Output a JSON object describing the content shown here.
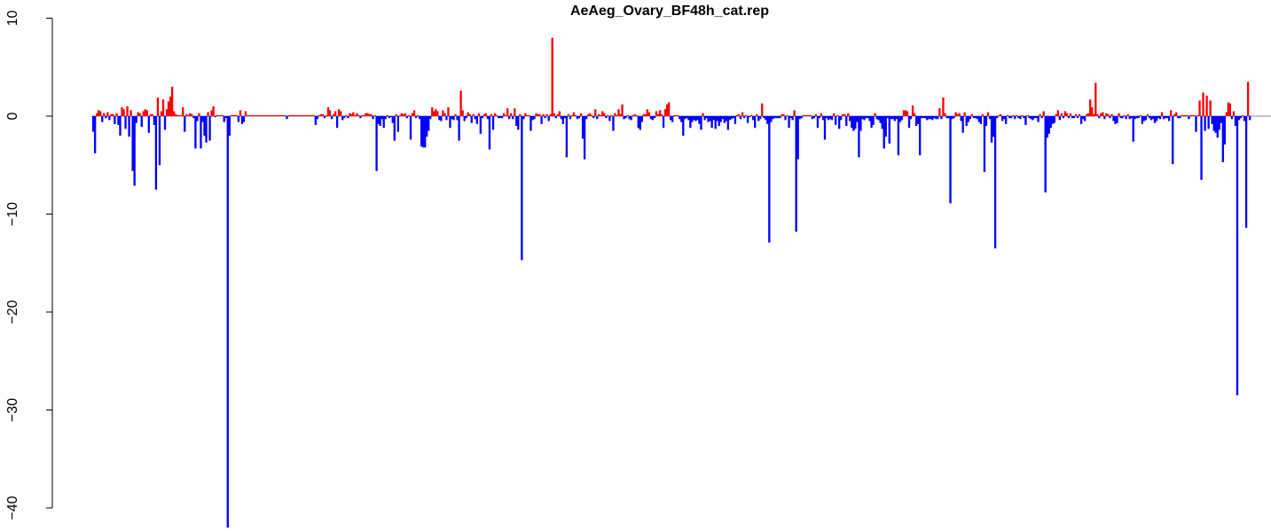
{
  "chart_data": {
    "type": "bar",
    "title": "AeAeg_Ovary_BF48h_cat.rep",
    "xlabel": "",
    "ylabel": "",
    "ylim": [
      -42,
      10
    ],
    "y_ticks": [
      10,
      0,
      -10,
      -20,
      -30,
      -40
    ],
    "y_tick_labels": [
      "10",
      "0",
      "−10",
      "−20",
      "−30",
      "−40"
    ],
    "baseline": 0,
    "colors": {
      "positive": "#ff0000",
      "negative": "#0000ff",
      "baseline": "#888888"
    },
    "series": [
      {
        "values": [
          -1.6,
          -3.8,
          0.3,
          0.6,
          0.5,
          -0.6,
          0.3,
          -0.2,
          0.4,
          -0.4,
          0.2,
          0.2,
          -0.8,
          0.3,
          -0.9,
          -2.0,
          0.9,
          0.7,
          -1.3,
          1.0,
          -2.1,
          0.6,
          -5.6,
          -7.1,
          -0.7,
          0.4,
          0.3,
          -1.1,
          0.5,
          0.7,
          0.6,
          -1.7,
          0.2,
          0.2,
          -0.9,
          -7.5,
          1.9,
          -5.0,
          0.5,
          1.7,
          -1.4,
          0.7,
          1.5,
          2.0,
          3.0,
          0.5,
          0.2,
          0.1,
          0.1,
          0.1,
          0.9,
          -1.6,
          0.2,
          0.1,
          0.3,
          0.2,
          -0.2,
          -3.3,
          -0.5,
          0.3,
          -3.3,
          -0.6,
          -2.0,
          -2.7,
          0.4,
          -2.5,
          0.6,
          1.0,
          -0.1,
          0.1,
          0.1,
          0.1,
          0.1,
          -0.6,
          -0.2,
          -42.0,
          -2.0,
          0.1,
          0.1,
          0.1,
          0.1,
          -0.6,
          0.6,
          -0.8,
          -0.6,
          0.5,
          0.1,
          0.1,
          0.1,
          0.1,
          0.1,
          0.1,
          0.1,
          0.1,
          0.1,
          0.1,
          0.1,
          0.1,
          0.1,
          0.1,
          0.1,
          0.1,
          0.1,
          0.1,
          0.1,
          0.1,
          0.1,
          0.1,
          -0.3,
          0.1,
          0.1,
          0.1,
          0.1,
          0.1,
          0.1,
          0.1,
          0.1,
          0.1,
          0.1,
          0.1,
          0.1,
          0.1,
          0.1,
          0.1,
          -0.9,
          -0.3,
          0.1,
          0.2,
          0.2,
          -0.2,
          0.1,
          0.9,
          0.6,
          -0.3,
          0.2,
          0.5,
          -1.2,
          0.7,
          0.5,
          -0.4,
          -0.2,
          0.1,
          -0.2,
          0.3,
          0.2,
          0.4,
          0.1,
          0.3,
          0.1,
          -0.2,
          0.1,
          0.1,
          0.3,
          0.3,
          0.2,
          0.2,
          -0.3,
          0.1,
          -5.6,
          -0.8,
          -1.0,
          -0.3,
          -1.2,
          -0.3,
          0.1,
          -0.2,
          -0.1,
          -0.7,
          -2.5,
          0.2,
          -1.6,
          0.1,
          0.3,
          0.2,
          0.3,
          -0.2,
          0.1,
          -2.4,
          0.3,
          0.6,
          -0.2,
          0.1,
          -0.3,
          -3.1,
          -3.2,
          -3.2,
          -2.1,
          -1.5,
          -0.3,
          0.9,
          0.5,
          0.7,
          0.5,
          -0.4,
          -0.5,
          0.6,
          0.3,
          -0.4,
          0.9,
          -1.2,
          -0.3,
          -0.4,
          0.2,
          -0.4,
          -2.5,
          2.6,
          0.6,
          -0.5,
          -0.2,
          0.4,
          0.2,
          -0.7,
          0.2,
          -0.3,
          -0.8,
          0.3,
          -1.8,
          -0.2,
          0.2,
          0.3,
          -0.3,
          -3.4,
          0.2,
          -1.4,
          0.3,
          0.1,
          -0.2,
          -0.2,
          -0.2,
          0.3,
          0.1,
          0.8,
          -0.3,
          0.3,
          -0.3,
          0.8,
          -1.0,
          -1.4,
          0.2,
          -14.7,
          -0.3,
          0.3,
          0.1,
          0.1,
          -1.5,
          -0.4,
          -0.3,
          0.3,
          0.2,
          0.2,
          -0.8,
          0.2,
          -0.2,
          0.2,
          -0.5,
          0.2,
          8.0,
          0.3,
          -0.2,
          0.2,
          0.5,
          -0.3,
          -0.8,
          -0.2,
          -4.2,
          0.2,
          -0.3,
          0.1,
          0.4,
          0.1,
          -0.3,
          -0.2,
          0.3,
          -2.3,
          -4.4,
          -0.3,
          0.2,
          0.3,
          0.1,
          -0.2,
          0.7,
          -0.3,
          0.2,
          0.1,
          0.5,
          0.3,
          -0.2,
          0.1,
          -0.5,
          0.1,
          -1.5,
          0.3,
          0.1,
          0.7,
          0.2,
          1.2,
          -0.3,
          -0.2,
          0.1,
          -0.3,
          -0.4,
          0.1,
          0.2,
          0.1,
          -1.2,
          -1.4,
          -0.6,
          0.2,
          0.2,
          0.7,
          0.4,
          -0.3,
          -0.4,
          -0.2,
          0.5,
          0.2,
          0.6,
          0.2,
          -1.2,
          0.7,
          1.2,
          1.4,
          -0.4,
          -0.6,
          0.1,
          0.1,
          0.1,
          -0.3,
          -0.6,
          -2.0,
          -0.3,
          -0.2,
          -0.4,
          -1.2,
          -0.6,
          -0.4,
          -0.5,
          -0.4,
          -0.8,
          -1.4,
          0.3,
          -0.4,
          -0.2,
          -0.6,
          -0.5,
          -1.2,
          -0.4,
          -1.3,
          -0.5,
          -1.0,
          -0.6,
          -0.3,
          -0.7,
          -0.5,
          -1.4,
          -0.4,
          -0.3,
          -0.2,
          -0.8,
          0.1,
          0.2,
          -0.3,
          0.4,
          -0.2,
          0.1,
          -0.7,
          -0.1,
          0.1,
          -0.4,
          -1.2,
          0.2,
          -0.5,
          -0.3,
          1.3,
          -0.2,
          -0.4,
          -0.8,
          -12.9,
          -0.6,
          -0.3,
          -0.2,
          -0.2,
          -0.2,
          -0.2,
          0.2,
          0.2,
          -0.4,
          0.1,
          -1.2,
          -0.2,
          -0.4,
          0.6,
          -11.8,
          -4.4,
          -0.3,
          -0.2,
          0.1,
          0.1,
          0.1,
          0.1,
          0.1,
          -0.3,
          -0.2,
          0.2,
          -1.2,
          -0.2,
          0.3,
          -0.4,
          -2.4,
          -0.2,
          -0.4,
          -0.3,
          -0.4,
          0.3,
          -0.9,
          0.1,
          -1.3,
          -0.4,
          0.2,
          0.2,
          -1.0,
          0.3,
          -0.5,
          -1.2,
          -1.5,
          -1.3,
          -0.6,
          -4.2,
          -1.5,
          -0.3,
          -0.4,
          -0.2,
          -0.2,
          -0.5,
          -1.2,
          -0.9,
          0.3,
          -0.3,
          -0.4,
          -0.7,
          -1.3,
          -3.3,
          -2.1,
          -0.2,
          -2.8,
          -0.3,
          -0.3,
          -0.5,
          -0.3,
          -4.0,
          -0.6,
          -0.4,
          0.6,
          0.6,
          0.5,
          -1.2,
          -0.3,
          1.1,
          0.3,
          -1.0,
          -0.8,
          -4.0,
          -0.2,
          -0.2,
          -0.2,
          -0.4,
          -0.3,
          -0.3,
          -0.4,
          -0.2,
          -0.3,
          -0.3,
          0.8,
          -0.3,
          1.9,
          0.3,
          -0.2,
          -0.2,
          -8.9,
          -0.3,
          -0.2,
          0.4,
          0.2,
          0.3,
          -0.5,
          -1.7,
          0.4,
          -1.0,
          -0.6,
          -0.3,
          0.2,
          -0.2,
          -0.2,
          -0.3,
          -0.6,
          -0.8,
          0.2,
          -5.7,
          -1.0,
          0.4,
          -0.3,
          -2.7,
          -2.1,
          -13.5,
          -0.2,
          0.1,
          0.2,
          -0.5,
          -0.3,
          -0.8,
          0.1,
          -0.2,
          -0.2,
          0.1,
          -0.3,
          0.1,
          -0.2,
          -0.3,
          0.1,
          -0.2,
          -0.9,
          0.1,
          -0.2,
          -0.3,
          -0.4,
          -0.2,
          -0.2,
          -0.6,
          0.2,
          -0.2,
          0.5,
          -7.8,
          -2.2,
          -1.8,
          -1.2,
          -0.8,
          -0.7,
          0.2,
          0.6,
          -0.4,
          0.3,
          -0.2,
          0.5,
          0.3,
          -0.2,
          0.3,
          -0.2,
          -0.2,
          0.2,
          -0.2,
          0.2,
          -0.8,
          -0.3,
          -0.5,
          0.2,
          0.3,
          1.7,
          0.9,
          0.2,
          3.4,
          0.2,
          -0.2,
          0.3,
          0.4,
          -0.3,
          0.3,
          0.2,
          -0.2,
          0.2,
          -0.5,
          -0.8,
          -0.7,
          0.3,
          -0.2,
          -0.2,
          0.1,
          -0.3,
          0.2,
          -0.3,
          -0.2,
          -2.6,
          -0.3,
          -0.2,
          -0.2,
          0.1,
          -0.8,
          -0.5,
          -0.4,
          0.2,
          -0.2,
          -0.4,
          -0.3,
          -0.7,
          -0.5,
          -0.2,
          -0.3,
          0.4,
          -0.3,
          -0.2,
          -0.2,
          -0.5,
          0.6,
          -4.9,
          0.2,
          0.4,
          -0.2,
          -0.2,
          0.1,
          0.1,
          0.1,
          0.1,
          -0.3,
          0.1,
          0.1,
          0.1,
          -1.6,
          0.1,
          1.6,
          -6.5,
          2.4,
          -1.5,
          2.1,
          -1.3,
          1.6,
          -0.8,
          -1.5,
          -1.7,
          -2.2,
          -1.4,
          -0.7,
          -4.7,
          -2.9,
          0.4,
          1.4,
          1.3,
          -0.3,
          0.5,
          -1.0,
          -28.5,
          -0.4,
          -0.2,
          0.1,
          -0.5,
          -11.4,
          3.5,
          -0.4
        ]
      }
    ]
  }
}
